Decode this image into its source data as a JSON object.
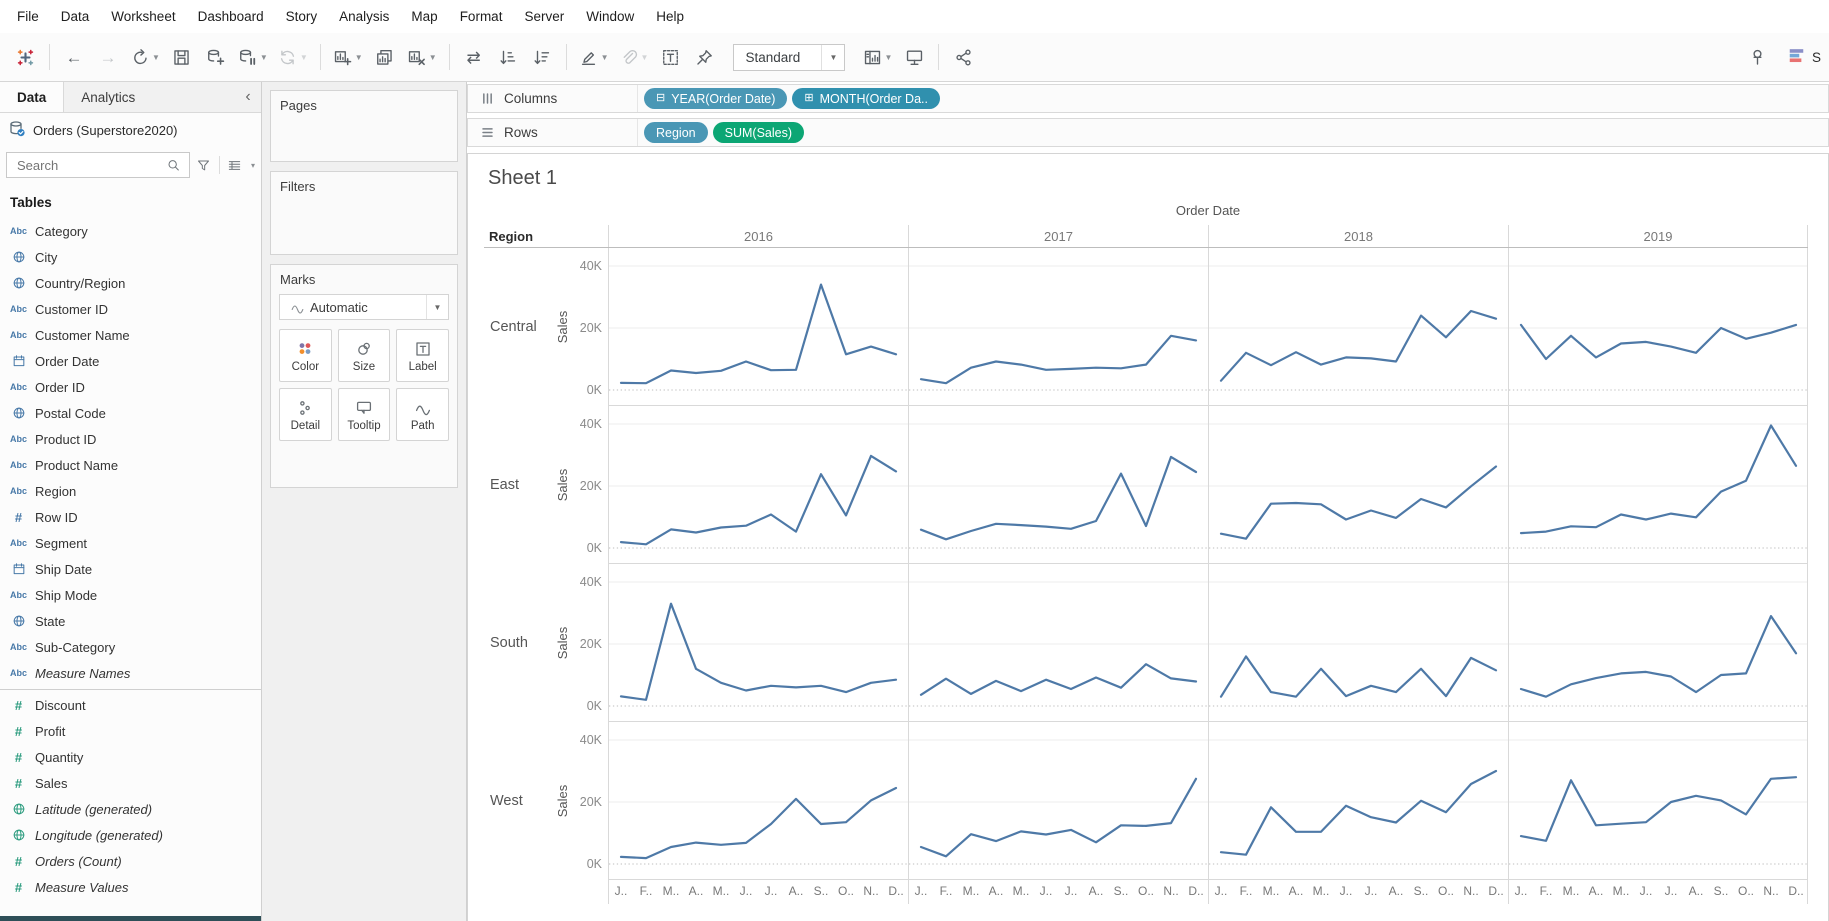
{
  "menu": {
    "items": [
      "File",
      "Data",
      "Worksheet",
      "Dashboard",
      "Story",
      "Analysis",
      "Map",
      "Format",
      "Server",
      "Window",
      "Help"
    ]
  },
  "toolbar": {
    "fit_label": "Standard",
    "show_me_label": "S",
    "group1": [
      {
        "name": "tableau-logo",
        "icon": "tableau-logo"
      },
      {
        "sep": true
      },
      {
        "name": "undo-button",
        "icon": "back-arrow"
      },
      {
        "name": "redo-button",
        "icon": "forward-arrow",
        "disabled": true
      },
      {
        "name": "replay-button",
        "icon": "replay",
        "caret": true
      },
      {
        "name": "save-button",
        "icon": "save"
      },
      {
        "name": "new-datasource-button",
        "icon": "new-datasource"
      },
      {
        "name": "pause-updates-button",
        "icon": "pause-updates",
        "caret": true
      },
      {
        "name": "refresh-button",
        "icon": "refresh",
        "disabled": true,
        "caret": true
      },
      {
        "sep": true
      },
      {
        "name": "new-worksheet-button",
        "icon": "new-worksheet",
        "caret": true
      },
      {
        "name": "duplicate-button",
        "icon": "duplicate"
      },
      {
        "name": "clear-sheet-button",
        "icon": "clear-sheet",
        "caret": true
      },
      {
        "sep": true
      },
      {
        "name": "swap-rows-columns-button",
        "icon": "swap"
      },
      {
        "name": "sort-ascending-button",
        "icon": "sort-ascending"
      },
      {
        "name": "sort-descending-button",
        "icon": "sort-descending"
      },
      {
        "sep": true
      },
      {
        "name": "highlight-button",
        "icon": "highlight-pen",
        "caret": true
      },
      {
        "name": "group-members-button",
        "icon": "paperclip",
        "disabled": true,
        "caret": true
      },
      {
        "name": "show-mark-labels-button",
        "icon": "text-label"
      },
      {
        "name": "fix-axes-button",
        "icon": "fix-pin"
      }
    ],
    "group2": [
      {
        "name": "show-hide-cards-button",
        "icon": "show-cards",
        "caret": true
      },
      {
        "name": "presentation-mode-button",
        "icon": "presentation"
      },
      {
        "sep": true
      },
      {
        "name": "share-button",
        "icon": "share"
      }
    ]
  },
  "data_pane": {
    "tabs": {
      "data": "Data",
      "analytics": "Analytics"
    },
    "datasource": "Orders (Superstore2020)",
    "search_placeholder": "Search",
    "tables_header": "Tables",
    "fields": [
      {
        "label": "Category",
        "icon": "abc-icon",
        "color": "blue"
      },
      {
        "label": "City",
        "icon": "globe-icon",
        "color": "blue"
      },
      {
        "label": "Country/Region",
        "icon": "globe-icon",
        "color": "blue"
      },
      {
        "label": "Customer ID",
        "icon": "abc-icon",
        "color": "blue"
      },
      {
        "label": "Customer Name",
        "icon": "abc-icon",
        "color": "blue"
      },
      {
        "label": "Order Date",
        "icon": "calendar-icon",
        "color": "blue"
      },
      {
        "label": "Order ID",
        "icon": "abc-icon",
        "color": "blue"
      },
      {
        "label": "Postal Code",
        "icon": "globe-icon",
        "color": "blue"
      },
      {
        "label": "Product ID",
        "icon": "abc-icon",
        "color": "blue"
      },
      {
        "label": "Product Name",
        "icon": "abc-icon",
        "color": "blue"
      },
      {
        "label": "Region",
        "icon": "abc-icon",
        "color": "blue"
      },
      {
        "label": "Row ID",
        "icon": "hash-icon",
        "color": "blue"
      },
      {
        "label": "Segment",
        "icon": "abc-icon",
        "color": "blue"
      },
      {
        "label": "Ship Date",
        "icon": "calendar-icon",
        "color": "blue"
      },
      {
        "label": "Ship Mode",
        "icon": "abc-icon",
        "color": "blue"
      },
      {
        "label": "State",
        "icon": "globe-icon",
        "color": "blue"
      },
      {
        "label": "Sub-Category",
        "icon": "abc-icon",
        "color": "blue"
      },
      {
        "label": "Measure Names",
        "icon": "abc-icon",
        "color": "blue",
        "italic": true,
        "divider_after": true
      },
      {
        "label": "Discount",
        "icon": "hash-icon",
        "color": "green"
      },
      {
        "label": "Profit",
        "icon": "hash-icon",
        "color": "green"
      },
      {
        "label": "Quantity",
        "icon": "hash-icon",
        "color": "green"
      },
      {
        "label": "Sales",
        "icon": "hash-icon",
        "color": "green"
      },
      {
        "label": "Latitude (generated)",
        "icon": "globe-icon",
        "color": "green",
        "italic": true
      },
      {
        "label": "Longitude (generated)",
        "icon": "globe-icon",
        "color": "green",
        "italic": true
      },
      {
        "label": "Orders (Count)",
        "icon": "hash-icon",
        "color": "green",
        "italic": true
      },
      {
        "label": "Measure Values",
        "icon": "hash-icon",
        "color": "green",
        "italic": true
      }
    ]
  },
  "cards": {
    "pages_title": "Pages",
    "filters_title": "Filters",
    "marks": {
      "title": "Marks",
      "mark_type": "Automatic",
      "buttons": [
        {
          "label": "Color",
          "icon": "color-icon"
        },
        {
          "label": "Size",
          "icon": "size-icon"
        },
        {
          "label": "Label",
          "icon": "label-icon"
        },
        {
          "label": "Detail",
          "icon": "detail-icon"
        },
        {
          "label": "Tooltip",
          "icon": "tooltip-icon"
        },
        {
          "label": "Path",
          "icon": "path-icon"
        }
      ]
    }
  },
  "shelves": {
    "columns_label": "Columns",
    "rows_label": "Rows",
    "columns_pills": [
      {
        "label": "YEAR(Order Date)",
        "type": "dim",
        "prefix": "minus"
      },
      {
        "label": "MONTH(Order Da..",
        "type": "dimdark",
        "prefix": "plus"
      }
    ],
    "rows_pills": [
      {
        "label": "Region",
        "type": "dim"
      },
      {
        "label": "SUM(Sales)",
        "type": "meas"
      }
    ]
  },
  "sheet": {
    "title": "Sheet 1"
  },
  "colors": {
    "line": "#4e79a7",
    "dimension_pill": "#4a97b5",
    "dimension_pill_dark": "#3090ae",
    "measure_pill": "#0ca674",
    "dimension_icon": "#4879a8",
    "measure_icon": "#2d9c7f"
  },
  "chart_data": {
    "type": "line",
    "title": "Sheet 1",
    "col_field": "Order Date",
    "row_field": "Region",
    "years": [
      "2016",
      "2017",
      "2018",
      "2019"
    ],
    "regions": [
      "Central",
      "East",
      "South",
      "West"
    ],
    "month_labels": [
      "J..",
      "F..",
      "M..",
      "A..",
      "M..",
      "J..",
      "J..",
      "A..",
      "S..",
      "O..",
      "N..",
      "D.."
    ],
    "ylabel": "Sales",
    "yticks": [
      "40K",
      "20K",
      "0K"
    ],
    "ylim_thousands": [
      0,
      45
    ],
    "grid": true,
    "legend": "none",
    "values_unit": "sales in thousands USD per month (Jan-Dec)",
    "series": [
      {
        "region": "Central",
        "year": "2016",
        "values": [
          2.3,
          2.2,
          6.3,
          5.5,
          6.2,
          9.2,
          6.4,
          6.5,
          34.0,
          11.5,
          14.0,
          11.5
        ]
      },
      {
        "region": "Central",
        "year": "2017",
        "values": [
          3.5,
          2.2,
          7.2,
          9.2,
          8.2,
          6.5,
          6.8,
          7.2,
          7.0,
          8.2,
          17.5,
          16.0
        ]
      },
      {
        "region": "Central",
        "year": "2018",
        "values": [
          3.0,
          12.0,
          8.0,
          12.2,
          8.2,
          10.5,
          10.2,
          9.2,
          24.0,
          17.0,
          25.5,
          23.0
        ]
      },
      {
        "region": "Central",
        "year": "2019",
        "values": [
          21.0,
          10.0,
          17.5,
          10.5,
          15.0,
          15.5,
          14.0,
          12.0,
          20.0,
          16.5,
          18.5,
          21.0
        ]
      },
      {
        "region": "East",
        "year": "2016",
        "values": [
          1.9,
          1.2,
          6.0,
          5.0,
          6.6,
          7.2,
          10.8,
          5.3,
          23.8,
          10.5,
          29.7,
          24.7
        ]
      },
      {
        "region": "East",
        "year": "2017",
        "values": [
          5.9,
          2.8,
          5.5,
          7.8,
          7.4,
          6.9,
          6.2,
          8.7,
          24.0,
          7.1,
          29.4,
          24.5
        ]
      },
      {
        "region": "East",
        "year": "2018",
        "values": [
          4.6,
          3.0,
          14.3,
          14.5,
          14.1,
          9.2,
          12.1,
          9.7,
          15.8,
          13.1,
          19.9,
          26.3
        ]
      },
      {
        "region": "East",
        "year": "2019",
        "values": [
          4.8,
          5.3,
          7.0,
          6.7,
          10.8,
          9.2,
          11.1,
          9.9,
          18.2,
          21.7,
          39.5,
          26.5
        ]
      },
      {
        "region": "South",
        "year": "2016",
        "values": [
          3.1,
          2.0,
          33.0,
          12.0,
          7.5,
          5.0,
          6.5,
          6.0,
          6.5,
          4.5,
          7.5,
          8.5
        ]
      },
      {
        "region": "South",
        "year": "2017",
        "values": [
          3.6,
          8.8,
          3.9,
          8.1,
          4.8,
          8.5,
          5.5,
          9.2,
          5.9,
          13.5,
          8.9,
          7.9
        ]
      },
      {
        "region": "South",
        "year": "2018",
        "values": [
          3.0,
          16.0,
          4.5,
          3.0,
          12.0,
          3.2,
          6.5,
          4.5,
          12.0,
          3.2,
          15.5,
          11.5
        ]
      },
      {
        "region": "South",
        "year": "2019",
        "values": [
          5.5,
          3.0,
          7.0,
          9.0,
          10.5,
          11.0,
          9.5,
          4.5,
          10.0,
          10.5,
          29.0,
          17.0
        ]
      },
      {
        "region": "West",
        "year": "2016",
        "values": [
          2.3,
          1.9,
          5.5,
          6.9,
          6.2,
          6.8,
          12.9,
          21.0,
          12.9,
          13.5,
          20.5,
          24.5
        ]
      },
      {
        "region": "West",
        "year": "2017",
        "values": [
          5.5,
          2.5,
          9.6,
          7.4,
          10.5,
          9.5,
          11.0,
          7.0,
          12.5,
          12.3,
          13.2,
          27.5
        ]
      },
      {
        "region": "West",
        "year": "2018",
        "values": [
          3.8,
          3.0,
          18.3,
          10.4,
          10.4,
          18.8,
          15.1,
          13.4,
          20.4,
          16.7,
          25.8,
          30.0
        ]
      },
      {
        "region": "West",
        "year": "2019",
        "values": [
          9.0,
          7.5,
          27.0,
          12.5,
          13.0,
          13.5,
          20.0,
          22.0,
          20.5,
          16.0,
          27.5,
          28.0
        ]
      }
    ]
  }
}
